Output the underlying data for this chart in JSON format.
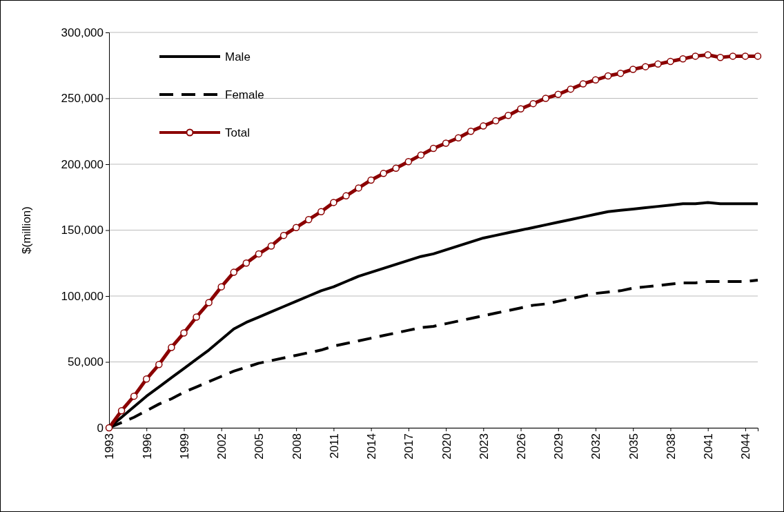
{
  "chart_data": {
    "type": "line",
    "ylabel": "$(million)",
    "x": [
      1993,
      1994,
      1995,
      1996,
      1997,
      1998,
      1999,
      2000,
      2001,
      2002,
      2003,
      2004,
      2005,
      2006,
      2007,
      2008,
      2009,
      2010,
      2011,
      2012,
      2013,
      2014,
      2015,
      2016,
      2017,
      2018,
      2019,
      2020,
      2021,
      2022,
      2023,
      2024,
      2025,
      2026,
      2027,
      2028,
      2029,
      2030,
      2031,
      2032,
      2033,
      2034,
      2035,
      2036,
      2037,
      2038,
      2039,
      2040,
      2041,
      2042,
      2043,
      2044,
      2045
    ],
    "xlim": [
      1993,
      2045
    ],
    "xticks": [
      1993,
      1996,
      1999,
      2002,
      2005,
      2008,
      2011,
      2014,
      2017,
      2020,
      2023,
      2026,
      2029,
      2032,
      2035,
      2038,
      2041,
      2044
    ],
    "ylim": [
      0,
      300000
    ],
    "yticks": [
      {
        "value": 0,
        "label": "0"
      },
      {
        "value": 50000,
        "label": "50,000"
      },
      {
        "value": 100000,
        "label": "100,000"
      },
      {
        "value": 150000,
        "label": "150,000"
      },
      {
        "value": 200000,
        "label": "200,000"
      },
      {
        "value": 250000,
        "label": "250,000"
      },
      {
        "value": 300000,
        "label": "300,000"
      }
    ],
    "grid": "y",
    "legend": "top left",
    "series": [
      {
        "name": "Male",
        "color": "#000000",
        "line_style": "solid",
        "marker": "none",
        "values": [
          0,
          8000,
          16000,
          24000,
          31000,
          38000,
          45000,
          52000,
          59000,
          67000,
          75000,
          80000,
          84000,
          88000,
          92000,
          96000,
          100000,
          104000,
          107000,
          111000,
          115000,
          118000,
          121000,
          124000,
          127000,
          130000,
          132000,
          135000,
          138000,
          141000,
          144000,
          146000,
          148000,
          150000,
          152000,
          154000,
          156000,
          158000,
          160000,
          162000,
          164000,
          165000,
          166000,
          167000,
          168000,
          169000,
          170000,
          170000,
          171000,
          170000,
          170000,
          170000,
          170000
        ]
      },
      {
        "name": "Female",
        "color": "#000000",
        "line_style": "dashed",
        "marker": "none",
        "values": [
          0,
          4000,
          8000,
          13000,
          18000,
          22000,
          27000,
          31000,
          35000,
          39000,
          43000,
          46000,
          49000,
          51000,
          53000,
          55000,
          57000,
          59000,
          62000,
          64000,
          66000,
          68000,
          70000,
          72000,
          74000,
          76000,
          77000,
          79000,
          81000,
          83000,
          85000,
          87000,
          89000,
          91000,
          93000,
          94000,
          96000,
          98000,
          100000,
          102000,
          103000,
          104000,
          106000,
          107000,
          108000,
          109000,
          110000,
          110000,
          111000,
          111000,
          111000,
          111000,
          112000
        ]
      },
      {
        "name": "Total",
        "color": "#8b0000",
        "line_style": "solid",
        "marker": "circle",
        "values": [
          0,
          13000,
          24000,
          37000,
          48000,
          61000,
          72000,
          84000,
          95000,
          107000,
          118000,
          125000,
          132000,
          138000,
          146000,
          152000,
          158000,
          164000,
          171000,
          176000,
          182000,
          188000,
          193000,
          197000,
          202000,
          207000,
          212000,
          216000,
          220000,
          225000,
          229000,
          233000,
          237000,
          242000,
          246000,
          250000,
          253000,
          257000,
          261000,
          264000,
          267000,
          269000,
          272000,
          274000,
          276000,
          278000,
          280000,
          282000,
          283000,
          281000,
          282000,
          282000,
          282000
        ]
      }
    ]
  }
}
